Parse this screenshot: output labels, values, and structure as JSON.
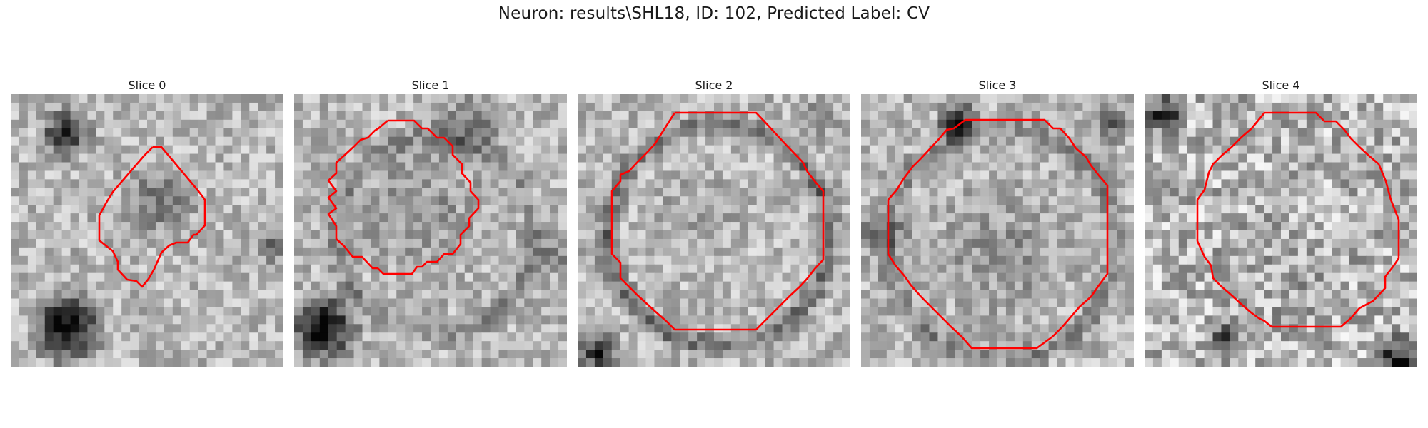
{
  "figure": {
    "title": "Neuron: results\\SHL18, ID: 102, Predicted Label: CV"
  },
  "panels": [
    {
      "title": "Slice 0",
      "contour_color": "#ff0000",
      "image": "grayscale-em-tile"
    },
    {
      "title": "Slice 1",
      "contour_color": "#ff0000",
      "image": "grayscale-em-tile"
    },
    {
      "title": "Slice 2",
      "contour_color": "#ff0000",
      "image": "grayscale-em-tile"
    },
    {
      "title": "Slice 3",
      "contour_color": "#ff0000",
      "image": "grayscale-em-tile"
    },
    {
      "title": "Slice 4",
      "contour_color": "#ff0000",
      "image": "grayscale-em-tile"
    }
  ]
}
